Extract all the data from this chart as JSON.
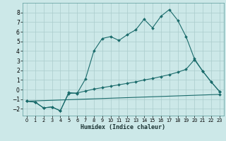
{
  "xlabel": "Humidex (Indice chaleur)",
  "bg_color": "#cce8e8",
  "grid_color": "#aacccc",
  "line_color": "#1a6b6b",
  "xlim": [
    -0.5,
    23.5
  ],
  "ylim": [
    -2.7,
    9.0
  ],
  "yticks": [
    -2,
    -1,
    0,
    1,
    2,
    3,
    4,
    5,
    6,
    7,
    8
  ],
  "xticks": [
    0,
    1,
    2,
    3,
    4,
    5,
    6,
    7,
    8,
    9,
    10,
    11,
    12,
    13,
    14,
    15,
    16,
    17,
    18,
    19,
    20,
    21,
    22,
    23
  ],
  "line1_x": [
    0,
    1,
    2,
    3,
    4,
    5,
    6,
    7,
    8,
    9,
    10,
    11,
    12,
    13,
    14,
    15,
    16,
    17,
    18,
    19,
    20,
    21,
    22,
    23
  ],
  "line1_y": [
    -1.2,
    -1.3,
    -1.9,
    -1.8,
    -2.2,
    -0.3,
    -0.4,
    1.1,
    4.0,
    5.3,
    5.5,
    5.1,
    5.7,
    6.2,
    7.3,
    6.4,
    7.6,
    8.3,
    7.2,
    5.5,
    3.2,
    1.9,
    0.8,
    -0.2
  ],
  "line2_x": [
    0,
    1,
    2,
    3,
    4,
    5,
    6,
    7,
    8,
    9,
    10,
    11,
    12,
    13,
    14,
    15,
    16,
    17,
    18,
    19,
    20,
    21,
    22,
    23
  ],
  "line2_y": [
    -1.2,
    -1.3,
    -1.9,
    -1.8,
    -2.2,
    -0.4,
    -0.35,
    -0.15,
    0.05,
    0.2,
    0.35,
    0.5,
    0.65,
    0.8,
    1.0,
    1.15,
    1.35,
    1.55,
    1.8,
    2.1,
    3.1,
    1.9,
    0.8,
    -0.2
  ],
  "line3_x": [
    0,
    23
  ],
  "line3_y": [
    -1.2,
    -0.5
  ]
}
